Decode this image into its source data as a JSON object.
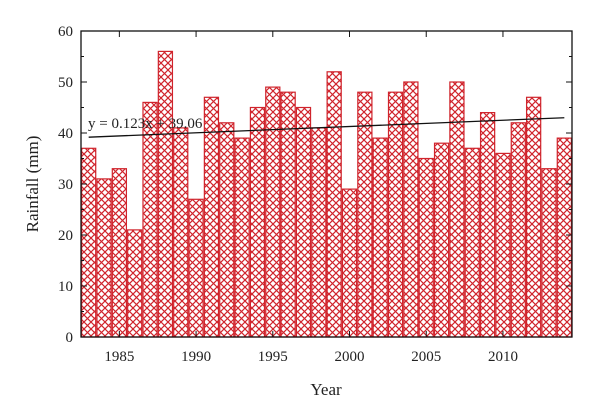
{
  "chart_data": {
    "type": "bar",
    "title": "",
    "xlabel": "Year",
    "ylabel": "Rainfall (mm)",
    "ylim": [
      0,
      60
    ],
    "xlim": [
      1982.5,
      2014.5
    ],
    "yticks": [
      "0",
      "10",
      "20",
      "30",
      "40",
      "50",
      "60"
    ],
    "xticks": [
      "1985",
      "1990",
      "1995",
      "2000",
      "2005",
      "2010"
    ],
    "bar_style": {
      "fill": "hatched-crosshatch",
      "color": "#d0242c"
    },
    "grid": false,
    "categories": [
      1983,
      1984,
      1985,
      1986,
      1987,
      1988,
      1989,
      1990,
      1991,
      1992,
      1993,
      1994,
      1995,
      1996,
      1997,
      1998,
      1999,
      2000,
      2001,
      2002,
      2003,
      2004,
      2005,
      2006,
      2007,
      2008,
      2009,
      2010,
      2011,
      2012,
      2013,
      2014
    ],
    "values": [
      37,
      31,
      33,
      21,
      46,
      56,
      41,
      27,
      47,
      42,
      39,
      45,
      49,
      48,
      45,
      41,
      52,
      29,
      48,
      39,
      48,
      50,
      35,
      38,
      50,
      37,
      44,
      36,
      42,
      47,
      33,
      39
    ],
    "trendline": {
      "equation_text": "y = 0.123x + 39.06",
      "slope": 0.123,
      "intercept": 39.06,
      "color": "#111111"
    }
  }
}
